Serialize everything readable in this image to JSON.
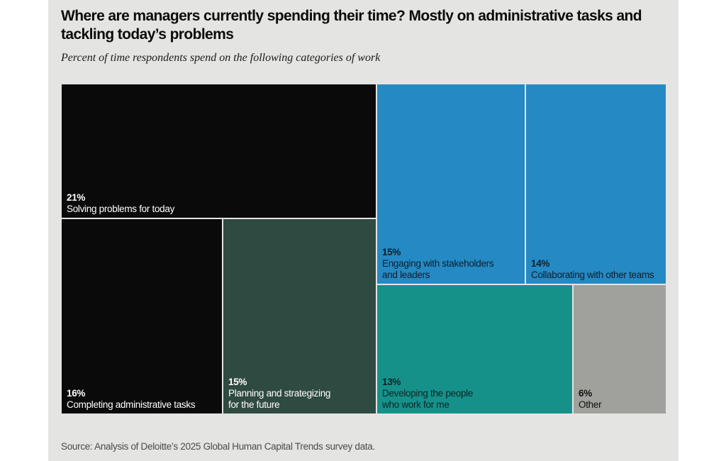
{
  "chart_data": {
    "type": "treemap",
    "title": "Where are managers currently spending their time? Mostly on administrative tasks and tackling today’s problems",
    "subtitle": "Percent of time respondents spend on the following categories of work",
    "source": "Source: Analysis of Deloitte’s 2025 Global Human Capital Trends survey data.",
    "unit": "%",
    "items": [
      {
        "label": "Solving problems for today",
        "value": 21,
        "value_label": "21%",
        "color": "#0a0a0a",
        "text_color": "#ffffff"
      },
      {
        "label": "Completing administrative tasks",
        "value": 16,
        "value_label": "16%",
        "color": "#0a0a0a",
        "text_color": "#ffffff"
      },
      {
        "label": "Planning and strategizing\nfor the future",
        "value": 15,
        "value_label": "15%",
        "color": "#2f4a40",
        "text_color": "#ffffff"
      },
      {
        "label": "Engaging with stakeholders\nand leaders",
        "value": 15,
        "value_label": "15%",
        "color": "#2589c3",
        "text_color": "#0e1f2c"
      },
      {
        "label": "Collaborating with other teams",
        "value": 14,
        "value_label": "14%",
        "color": "#2589c3",
        "text_color": "#0e1f2c"
      },
      {
        "label": "Developing the people\nwho work for me",
        "value": 13,
        "value_label": "13%",
        "color": "#15918a",
        "text_color": "#0e2422"
      },
      {
        "label": "Other",
        "value": 6,
        "value_label": "6%",
        "color": "#a0a09c",
        "text_color": "#111111"
      }
    ]
  }
}
